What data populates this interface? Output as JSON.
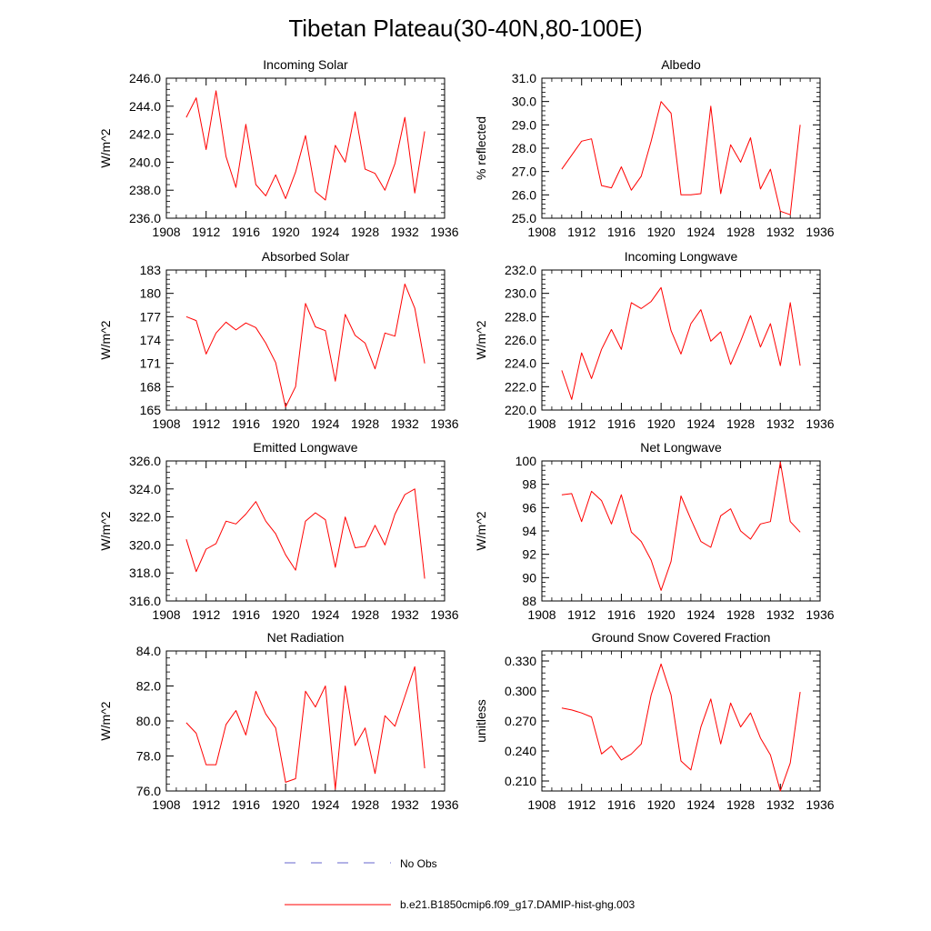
{
  "figure": {
    "title": "Tibetan Plateau(30-40N,80-100E)",
    "line_color": "#ff0000",
    "obs_color": "#6666cc"
  },
  "legend": {
    "obs_label": "No Obs",
    "model_label": "b.e21.B1850cmip6.f09_g17.DAMIP-hist-ghg.003"
  },
  "chart_data": [
    {
      "type": "line",
      "title": "Incoming Solar",
      "xlabel": "",
      "ylabel": "W/m^2",
      "xlim": [
        1908,
        1936
      ],
      "ylim": [
        236,
        246
      ],
      "xticks": [
        1908,
        1912,
        1916,
        1920,
        1924,
        1928,
        1932,
        1936
      ],
      "yticks": [
        236,
        238,
        240,
        242,
        244,
        246
      ],
      "ytick_labels": [
        "236.0",
        "238.0",
        "240.0",
        "242.0",
        "244.0",
        "246.0"
      ],
      "x": [
        1910,
        1911,
        1912,
        1913,
        1914,
        1915,
        1916,
        1917,
        1918,
        1919,
        1920,
        1921,
        1922,
        1923,
        1924,
        1925,
        1926,
        1927,
        1928,
        1929,
        1930,
        1931,
        1932,
        1933,
        1934
      ],
      "series": [
        {
          "name": "b.e21.B1850cmip6.f09_g17.DAMIP-hist-ghg.003",
          "values": [
            243.2,
            244.6,
            240.9,
            245.1,
            240.4,
            238.2,
            242.7,
            238.4,
            237.6,
            239.1,
            237.4,
            239.3,
            241.9,
            237.9,
            237.3,
            241.2,
            240.0,
            243.6,
            239.5,
            239.2,
            238.0,
            239.9,
            243.2,
            237.8,
            242.2
          ]
        }
      ]
    },
    {
      "type": "line",
      "title": "Albedo",
      "xlabel": "",
      "ylabel": "% reflected",
      "xlim": [
        1908,
        1936
      ],
      "ylim": [
        25,
        31
      ],
      "xticks": [
        1908,
        1912,
        1916,
        1920,
        1924,
        1928,
        1932,
        1936
      ],
      "yticks": [
        25,
        26,
        27,
        28,
        29,
        30,
        31
      ],
      "ytick_labels": [
        "25.0",
        "26.0",
        "27.0",
        "28.0",
        "29.0",
        "30.0",
        "31.0"
      ],
      "x": [
        1910,
        1911,
        1912,
        1913,
        1914,
        1915,
        1916,
        1917,
        1918,
        1919,
        1920,
        1921,
        1922,
        1923,
        1924,
        1925,
        1926,
        1927,
        1928,
        1929,
        1930,
        1931,
        1932,
        1933,
        1934
      ],
      "series": [
        {
          "name": "b.e21.B1850cmip6.f09_g17.DAMIP-hist-ghg.003",
          "values": [
            27.1,
            27.7,
            28.3,
            28.4,
            26.4,
            26.3,
            27.2,
            26.2,
            26.8,
            28.3,
            30.0,
            29.5,
            26.0,
            26.0,
            26.05,
            29.8,
            26.05,
            28.15,
            27.4,
            28.45,
            26.25,
            27.1,
            25.3,
            25.15,
            29.0
          ]
        }
      ]
    },
    {
      "type": "line",
      "title": "Absorbed Solar",
      "xlabel": "",
      "ylabel": "W/m^2",
      "xlim": [
        1908,
        1936
      ],
      "ylim": [
        165,
        183
      ],
      "xticks": [
        1908,
        1912,
        1916,
        1920,
        1924,
        1928,
        1932,
        1936
      ],
      "yticks": [
        165,
        168,
        171,
        174,
        177,
        180,
        183
      ],
      "ytick_labels": [
        "165",
        "168",
        "171",
        "174",
        "177",
        "180",
        "183"
      ],
      "x": [
        1910,
        1911,
        1912,
        1913,
        1914,
        1915,
        1916,
        1917,
        1918,
        1919,
        1920,
        1921,
        1922,
        1923,
        1924,
        1925,
        1926,
        1927,
        1928,
        1929,
        1930,
        1931,
        1932,
        1933,
        1934
      ],
      "series": [
        {
          "name": "b.e21.B1850cmip6.f09_g17.DAMIP-hist-ghg.003",
          "values": [
            177.0,
            176.5,
            172.2,
            174.9,
            176.3,
            175.3,
            176.2,
            175.6,
            173.6,
            171.1,
            165.4,
            168.0,
            178.7,
            175.7,
            175.2,
            168.7,
            177.3,
            174.6,
            173.6,
            170.3,
            174.9,
            174.5,
            181.2,
            178.1,
            171.0
          ]
        }
      ]
    },
    {
      "type": "line",
      "title": "Incoming Longwave",
      "xlabel": "",
      "ylabel": "W/m^2",
      "xlim": [
        1908,
        1936
      ],
      "ylim": [
        220,
        232
      ],
      "xticks": [
        1908,
        1912,
        1916,
        1920,
        1924,
        1928,
        1932,
        1936
      ],
      "yticks": [
        220,
        222,
        224,
        226,
        228,
        230,
        232
      ],
      "ytick_labels": [
        "220.0",
        "222.0",
        "224.0",
        "226.0",
        "228.0",
        "230.0",
        "232.0"
      ],
      "x": [
        1910,
        1911,
        1912,
        1913,
        1914,
        1915,
        1916,
        1917,
        1918,
        1919,
        1920,
        1921,
        1922,
        1923,
        1924,
        1925,
        1926,
        1927,
        1928,
        1929,
        1930,
        1931,
        1932,
        1933,
        1934
      ],
      "series": [
        {
          "name": "b.e21.B1850cmip6.f09_g17.DAMIP-hist-ghg.003",
          "values": [
            223.4,
            220.9,
            224.9,
            222.7,
            225.2,
            226.9,
            225.2,
            229.2,
            228.7,
            229.3,
            230.5,
            226.8,
            224.8,
            227.4,
            228.6,
            225.9,
            226.7,
            223.9,
            225.9,
            228.1,
            225.4,
            227.4,
            223.8,
            229.2,
            223.8
          ]
        }
      ]
    },
    {
      "type": "line",
      "title": "Emitted Longwave",
      "xlabel": "",
      "ylabel": "W/m^2",
      "xlim": [
        1908,
        1936
      ],
      "ylim": [
        316,
        326
      ],
      "xticks": [
        1908,
        1912,
        1916,
        1920,
        1924,
        1928,
        1932,
        1936
      ],
      "yticks": [
        316,
        318,
        320,
        322,
        324,
        326
      ],
      "ytick_labels": [
        "316.0",
        "318.0",
        "320.0",
        "322.0",
        "324.0",
        "326.0"
      ],
      "x": [
        1910,
        1911,
        1912,
        1913,
        1914,
        1915,
        1916,
        1917,
        1918,
        1919,
        1920,
        1921,
        1922,
        1923,
        1924,
        1925,
        1926,
        1927,
        1928,
        1929,
        1930,
        1931,
        1932,
        1933,
        1934
      ],
      "series": [
        {
          "name": "b.e21.B1850cmip6.f09_g17.DAMIP-hist-ghg.003",
          "values": [
            320.4,
            318.1,
            319.7,
            320.1,
            321.7,
            321.5,
            322.2,
            323.1,
            321.7,
            320.8,
            319.3,
            318.2,
            321.7,
            322.3,
            321.8,
            318.4,
            322.0,
            319.8,
            319.9,
            321.4,
            320.0,
            322.2,
            323.6,
            324.0,
            317.6
          ]
        }
      ]
    },
    {
      "type": "line",
      "title": "Net Longwave",
      "xlabel": "",
      "ylabel": "W/m^2",
      "xlim": [
        1908,
        1936
      ],
      "ylim": [
        88,
        100
      ],
      "xticks": [
        1908,
        1912,
        1916,
        1920,
        1924,
        1928,
        1932,
        1936
      ],
      "yticks": [
        88,
        90,
        92,
        94,
        96,
        98,
        100
      ],
      "ytick_labels": [
        "88",
        "90",
        "92",
        "94",
        "96",
        "98",
        "100"
      ],
      "x": [
        1910,
        1911,
        1912,
        1913,
        1914,
        1915,
        1916,
        1917,
        1918,
        1919,
        1920,
        1921,
        1922,
        1923,
        1924,
        1925,
        1926,
        1927,
        1928,
        1929,
        1930,
        1931,
        1932,
        1933,
        1934
      ],
      "series": [
        {
          "name": "b.e21.B1850cmip6.f09_g17.DAMIP-hist-ghg.003",
          "values": [
            97.1,
            97.2,
            94.8,
            97.4,
            96.6,
            94.6,
            97.1,
            93.9,
            93.1,
            91.5,
            88.9,
            91.4,
            97.0,
            95.0,
            93.1,
            92.6,
            95.3,
            95.9,
            94.0,
            93.3,
            94.6,
            94.8,
            99.9,
            94.8,
            93.9
          ]
        }
      ]
    },
    {
      "type": "line",
      "title": "Net Radiation",
      "xlabel": "",
      "ylabel": "W/m^2",
      "xlim": [
        1908,
        1936
      ],
      "ylim": [
        76,
        84
      ],
      "xticks": [
        1908,
        1912,
        1916,
        1920,
        1924,
        1928,
        1932,
        1936
      ],
      "yticks": [
        76,
        78,
        80,
        82,
        84
      ],
      "ytick_labels": [
        "76.0",
        "78.0",
        "80.0",
        "82.0",
        "84.0"
      ],
      "x": [
        1910,
        1911,
        1912,
        1913,
        1914,
        1915,
        1916,
        1917,
        1918,
        1919,
        1920,
        1921,
        1922,
        1923,
        1924,
        1925,
        1926,
        1927,
        1928,
        1929,
        1930,
        1931,
        1932,
        1933,
        1934
      ],
      "series": [
        {
          "name": "b.e21.B1850cmip6.f09_g17.DAMIP-hist-ghg.003",
          "values": [
            79.9,
            79.3,
            77.5,
            77.5,
            79.8,
            80.6,
            79.2,
            81.7,
            80.4,
            79.6,
            76.5,
            76.7,
            81.7,
            80.8,
            82.0,
            76.1,
            82.0,
            78.6,
            79.6,
            77.0,
            80.3,
            79.7,
            81.4,
            83.1,
            77.3
          ]
        }
      ]
    },
    {
      "type": "line",
      "title": "Ground Snow Covered Fraction",
      "xlabel": "",
      "ylabel": "unitless",
      "xlim": [
        1908,
        1936
      ],
      "ylim": [
        0.2,
        0.34
      ],
      "xticks": [
        1908,
        1912,
        1916,
        1920,
        1924,
        1928,
        1932,
        1936
      ],
      "yticks": [
        0.21,
        0.24,
        0.27,
        0.3,
        0.33
      ],
      "ytick_labels": [
        "0.210",
        "0.240",
        "0.270",
        "0.300",
        "0.330"
      ],
      "x": [
        1910,
        1911,
        1912,
        1913,
        1914,
        1915,
        1916,
        1917,
        1918,
        1919,
        1920,
        1921,
        1922,
        1923,
        1924,
        1925,
        1926,
        1927,
        1928,
        1929,
        1930,
        1931,
        1932,
        1933,
        1934
      ],
      "series": [
        {
          "name": "b.e21.B1850cmip6.f09_g17.DAMIP-hist-ghg.003",
          "values": [
            0.283,
            0.281,
            0.278,
            0.274,
            0.237,
            0.245,
            0.231,
            0.237,
            0.247,
            0.296,
            0.327,
            0.296,
            0.23,
            0.221,
            0.264,
            0.292,
            0.247,
            0.288,
            0.264,
            0.278,
            0.253,
            0.236,
            0.2,
            0.228,
            0.299
          ]
        }
      ]
    }
  ]
}
